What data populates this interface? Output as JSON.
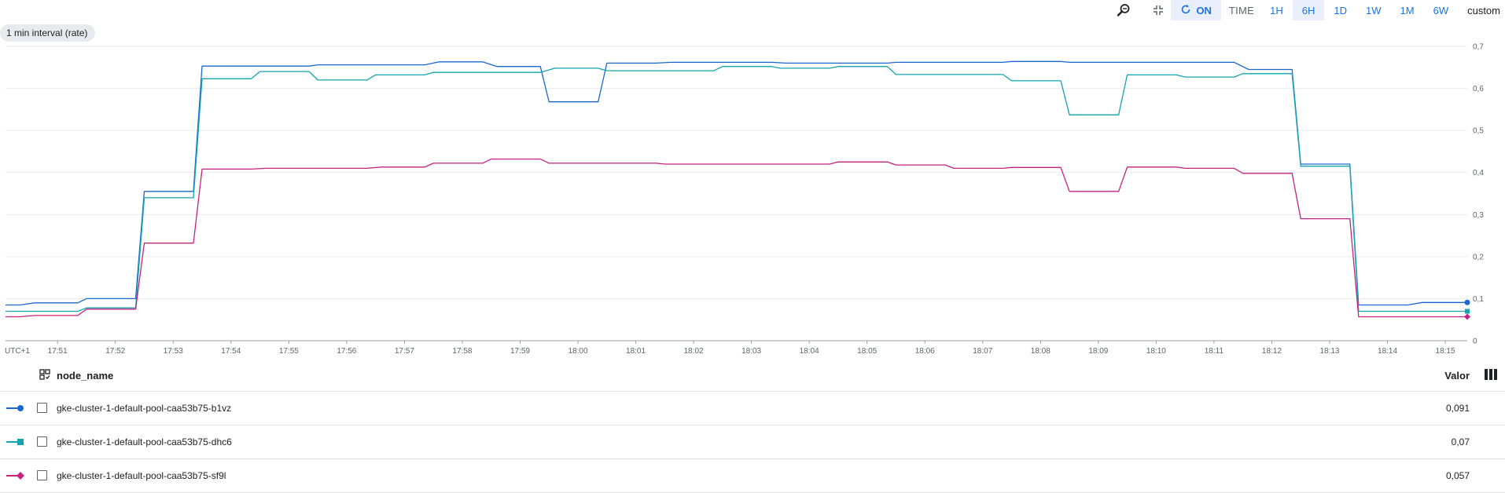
{
  "toolbar": {
    "reset_zoom_icon": "zoom-reset-icon",
    "collapse_icon": "collapse-icon",
    "refresh_icon": "refresh-icon",
    "auto_refresh_label": "ON",
    "time_label": "TIME",
    "ranges": [
      "1H",
      "6H",
      "1D",
      "1W",
      "1M",
      "6W"
    ],
    "active_range": "6H",
    "custom_label": "custom",
    "accent_color": "#1a73e8"
  },
  "interval_chip": "1 min interval (rate)",
  "legend": {
    "group_icon": "group-by-icon",
    "name_header": "node_name",
    "value_header": "Valor",
    "columns_icon": "columns-icon",
    "rows": [
      {
        "name": "gke-cluster-1-default-pool-caa53b75-b1vz",
        "value": "0,091",
        "color": "#1967d2",
        "marker": "circle"
      },
      {
        "name": "gke-cluster-1-default-pool-caa53b75-dhc6",
        "value": "0,07",
        "color": "#12a4af",
        "marker": "square"
      },
      {
        "name": "gke-cluster-1-default-pool-caa53b75-sf9l",
        "value": "0,057",
        "color": "#c5227f",
        "marker": "diamond"
      }
    ]
  },
  "chart_data": {
    "type": "line",
    "timezone_label": "UTC+1",
    "x_tick_labels": [
      "17:51",
      "17:52",
      "17:53",
      "17:54",
      "17:55",
      "17:56",
      "17:57",
      "17:58",
      "17:59",
      "18:00",
      "18:01",
      "18:02",
      "18:03",
      "18:04",
      "18:05",
      "18:06",
      "18:07",
      "18:08",
      "18:09",
      "18:10",
      "18:11",
      "18:12",
      "18:13",
      "18:14",
      "18:15"
    ],
    "x_tick_minutes": [
      51,
      52,
      53,
      54,
      55,
      56,
      57,
      58,
      59,
      60,
      61,
      62,
      63,
      64,
      65,
      66,
      67,
      68,
      69,
      70,
      71,
      72,
      73,
      74,
      75
    ],
    "x_range_minutes": [
      50.1,
      75.38
    ],
    "y_tick_labels": [
      "0",
      "0,1",
      "0,2",
      "0,3",
      "0,4",
      "0,5",
      "0,6",
      "0,7"
    ],
    "y_tick_values": [
      0,
      0.1,
      0.2,
      0.3,
      0.4,
      0.5,
      0.6,
      0.7
    ],
    "ylim": [
      0,
      0.7
    ],
    "grid": true,
    "y_axis_side": "right",
    "series": [
      {
        "name": "gke-cluster-1-default-pool-caa53b75-b1vz",
        "color": "#1967d2",
        "marker": "circle",
        "points": [
          [
            50.1,
            0.085
          ],
          [
            50.35,
            0.085
          ],
          [
            50.6,
            0.09
          ],
          [
            51.35,
            0.09
          ],
          [
            51.5,
            0.1
          ],
          [
            52.35,
            0.1
          ],
          [
            52.5,
            0.355
          ],
          [
            53.35,
            0.355
          ],
          [
            53.5,
            0.653
          ],
          [
            55.35,
            0.653
          ],
          [
            55.5,
            0.656
          ],
          [
            57.35,
            0.656
          ],
          [
            57.6,
            0.663
          ],
          [
            58.35,
            0.663
          ],
          [
            58.6,
            0.652
          ],
          [
            59.35,
            0.652
          ],
          [
            59.5,
            0.568
          ],
          [
            60.35,
            0.568
          ],
          [
            60.5,
            0.66
          ],
          [
            61.35,
            0.66
          ],
          [
            61.6,
            0.662
          ],
          [
            63.35,
            0.662
          ],
          [
            63.6,
            0.66
          ],
          [
            65.35,
            0.66
          ],
          [
            65.5,
            0.662
          ],
          [
            67.35,
            0.662
          ],
          [
            67.5,
            0.664
          ],
          [
            68.35,
            0.664
          ],
          [
            68.5,
            0.662
          ],
          [
            71.35,
            0.662
          ],
          [
            71.6,
            0.645
          ],
          [
            72.35,
            0.645
          ],
          [
            72.5,
            0.42
          ],
          [
            73.35,
            0.42
          ],
          [
            73.5,
            0.085
          ],
          [
            74.35,
            0.085
          ],
          [
            74.6,
            0.091
          ],
          [
            75.38,
            0.091
          ]
        ]
      },
      {
        "name": "gke-cluster-1-default-pool-caa53b75-dhc6",
        "color": "#12a4af",
        "marker": "square",
        "points": [
          [
            50.1,
            0.07
          ],
          [
            51.35,
            0.07
          ],
          [
            51.5,
            0.078
          ],
          [
            52.35,
            0.078
          ],
          [
            52.5,
            0.34
          ],
          [
            53.35,
            0.34
          ],
          [
            53.5,
            0.623
          ],
          [
            54.35,
            0.623
          ],
          [
            54.5,
            0.64
          ],
          [
            55.35,
            0.64
          ],
          [
            55.5,
            0.62
          ],
          [
            56.35,
            0.62
          ],
          [
            56.5,
            0.632
          ],
          [
            57.35,
            0.632
          ],
          [
            57.5,
            0.638
          ],
          [
            59.35,
            0.638
          ],
          [
            59.6,
            0.648
          ],
          [
            60.35,
            0.648
          ],
          [
            60.5,
            0.642
          ],
          [
            62.35,
            0.642
          ],
          [
            62.5,
            0.652
          ],
          [
            63.35,
            0.652
          ],
          [
            63.5,
            0.648
          ],
          [
            64.35,
            0.648
          ],
          [
            64.5,
            0.652
          ],
          [
            65.35,
            0.652
          ],
          [
            65.5,
            0.633
          ],
          [
            67.35,
            0.633
          ],
          [
            67.5,
            0.618
          ],
          [
            68.35,
            0.618
          ],
          [
            68.5,
            0.537
          ],
          [
            69.35,
            0.537
          ],
          [
            69.5,
            0.632
          ],
          [
            70.35,
            0.632
          ],
          [
            70.5,
            0.627
          ],
          [
            71.35,
            0.627
          ],
          [
            71.5,
            0.635
          ],
          [
            72.35,
            0.635
          ],
          [
            72.5,
            0.415
          ],
          [
            73.35,
            0.415
          ],
          [
            73.5,
            0.07
          ],
          [
            75.38,
            0.07
          ]
        ]
      },
      {
        "name": "gke-cluster-1-default-pool-caa53b75-sf9l",
        "color": "#c5227f",
        "marker": "diamond",
        "points": [
          [
            50.1,
            0.057
          ],
          [
            50.35,
            0.057
          ],
          [
            50.6,
            0.06
          ],
          [
            51.35,
            0.06
          ],
          [
            51.5,
            0.075
          ],
          [
            52.35,
            0.075
          ],
          [
            52.5,
            0.232
          ],
          [
            53.35,
            0.232
          ],
          [
            53.5,
            0.408
          ],
          [
            54.35,
            0.408
          ],
          [
            54.6,
            0.41
          ],
          [
            56.35,
            0.41
          ],
          [
            56.6,
            0.413
          ],
          [
            57.35,
            0.413
          ],
          [
            57.5,
            0.422
          ],
          [
            58.35,
            0.422
          ],
          [
            58.5,
            0.432
          ],
          [
            59.35,
            0.432
          ],
          [
            59.5,
            0.422
          ],
          [
            61.35,
            0.422
          ],
          [
            61.5,
            0.42
          ],
          [
            64.35,
            0.42
          ],
          [
            64.5,
            0.425
          ],
          [
            65.35,
            0.425
          ],
          [
            65.5,
            0.418
          ],
          [
            66.35,
            0.418
          ],
          [
            66.5,
            0.41
          ],
          [
            67.35,
            0.41
          ],
          [
            67.5,
            0.412
          ],
          [
            68.35,
            0.412
          ],
          [
            68.5,
            0.355
          ],
          [
            69.35,
            0.355
          ],
          [
            69.5,
            0.413
          ],
          [
            70.35,
            0.413
          ],
          [
            70.5,
            0.41
          ],
          [
            71.35,
            0.41
          ],
          [
            71.5,
            0.398
          ],
          [
            72.35,
            0.398
          ],
          [
            72.5,
            0.29
          ],
          [
            73.35,
            0.29
          ],
          [
            73.5,
            0.057
          ],
          [
            75.38,
            0.057
          ]
        ]
      }
    ]
  }
}
